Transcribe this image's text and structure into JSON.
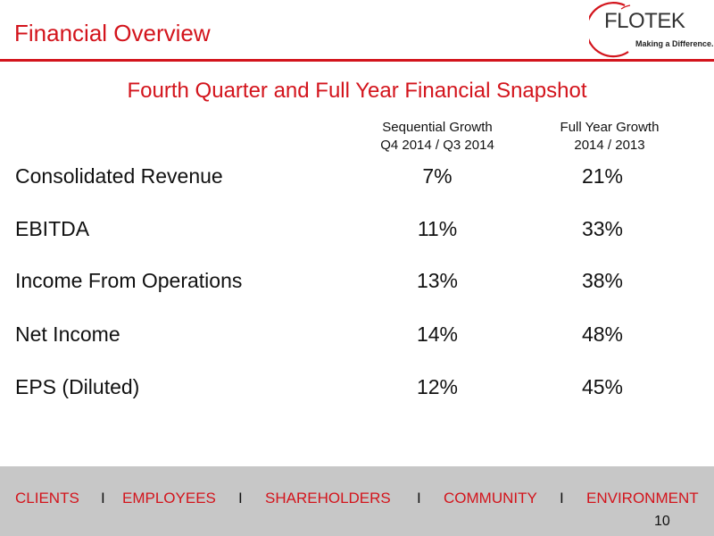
{
  "header": {
    "title": "Financial Overview",
    "logo": {
      "name": "FLOTEK",
      "tagline": "Making a Difference. . ."
    }
  },
  "snapshot": {
    "title": "Fourth Quarter and Full Year Financial Snapshot",
    "columns": [
      {
        "line1": "Sequential Growth",
        "line2": "Q4 2014 / Q3 2014"
      },
      {
        "line1": "Full Year Growth",
        "line2": "2014 / 2013"
      }
    ],
    "rows": [
      {
        "label": "Consolidated Revenue",
        "sequential": "7%",
        "full_year": "21%"
      },
      {
        "label": "EBITDA",
        "sequential": "11%",
        "full_year": "33%"
      },
      {
        "label": "Income From Operations",
        "sequential": "13%",
        "full_year": "38%"
      },
      {
        "label": "Net Income",
        "sequential": "14%",
        "full_year": "48%"
      },
      {
        "label": "EPS (Diluted)",
        "sequential": "12%",
        "full_year": "45%"
      }
    ]
  },
  "footer": {
    "items": [
      "CLIENTS",
      "EMPLOYEES",
      "SHAREHOLDERS",
      "COMMUNITY",
      "ENVIRONMENT"
    ],
    "separator": "I",
    "page_number": "10"
  },
  "colors": {
    "accent": "#d3141c",
    "footer_band": "#c7c7c7"
  }
}
